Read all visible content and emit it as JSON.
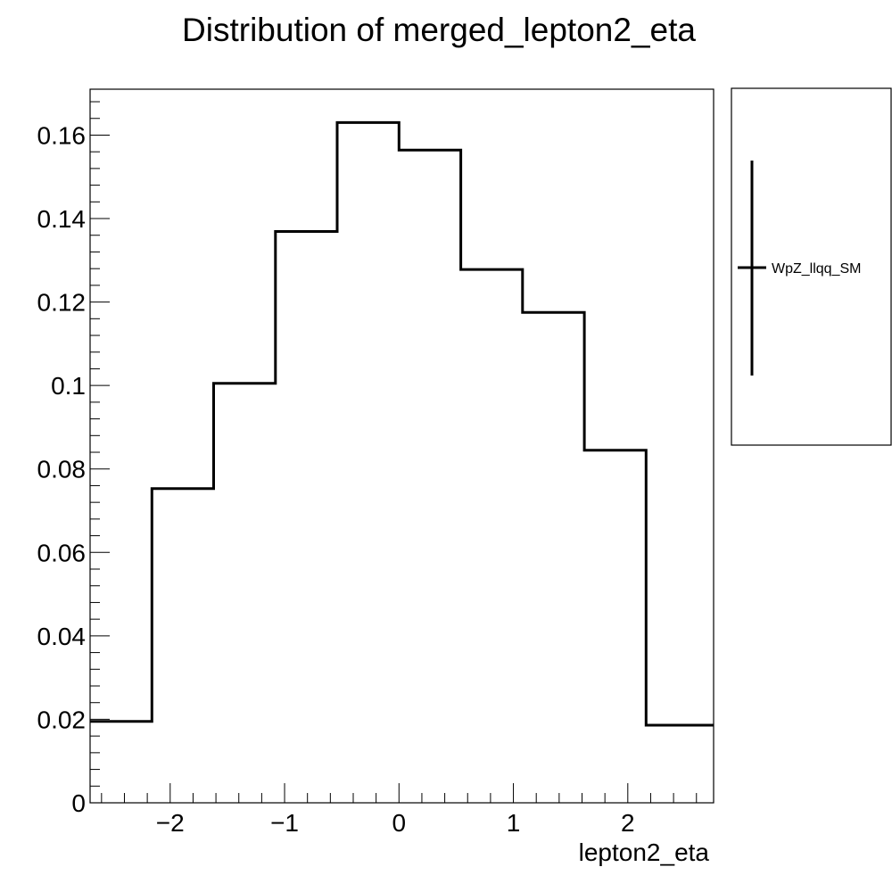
{
  "chart_data": {
    "type": "line",
    "drawstyle": "steps-mid",
    "title": "Distribution of merged_lepton2_eta",
    "xlabel": "lepton2_eta",
    "ylabel": "",
    "xlim": [
      -2.7,
      2.75
    ],
    "ylim": [
      0,
      0.171
    ],
    "grid": false,
    "legend_position": "outside-right-top",
    "x_ticks": [
      -2,
      -1,
      0,
      1,
      2
    ],
    "x_tick_labels": [
      "−2",
      "−1",
      "0",
      "1",
      "2"
    ],
    "y_ticks": [
      0,
      0.02,
      0.04,
      0.06,
      0.08,
      0.1,
      0.12,
      0.14,
      0.16
    ],
    "y_tick_labels": [
      "0",
      "0.02",
      "0.04",
      "0.06",
      "0.08",
      "0.1",
      "0.12",
      "0.14",
      "0.16"
    ],
    "bin_edges": [
      -2.7,
      -2.16,
      -1.62,
      -1.08,
      -0.54,
      0.0,
      0.54,
      1.08,
      1.62,
      2.16,
      2.75
    ],
    "series": [
      {
        "name": "WpZ_llqq_SM",
        "color": "#000000",
        "values": [
          0.0195,
          0.0753,
          0.1005,
          0.1369,
          0.163,
          0.1564,
          0.1278,
          0.1175,
          0.0845,
          0.0186
        ]
      }
    ]
  }
}
